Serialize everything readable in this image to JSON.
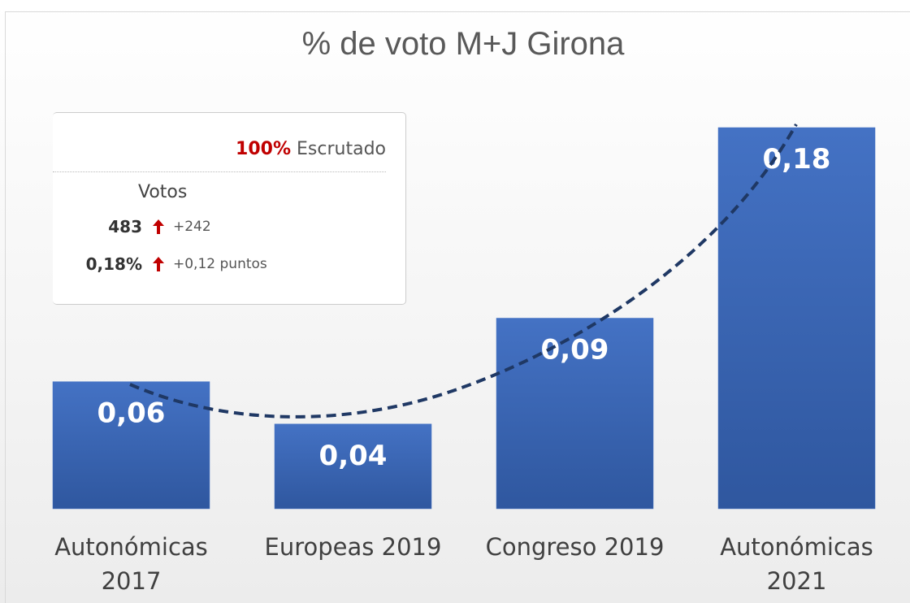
{
  "chart_data": {
    "type": "bar",
    "title": "% de voto M+J Girona",
    "categories": [
      "Autonómicas\n2017",
      "Europeas 2019",
      "Congreso 2019",
      "Autonómicas\n2021"
    ],
    "values": [
      0.06,
      0.04,
      0.09,
      0.18
    ],
    "value_labels": [
      "0,06",
      "0,04",
      "0,09",
      "0,18"
    ],
    "color": "#4472c4"
  },
  "inset": {
    "scrutinized": "100%",
    "scrutinized_label": "Escrutado",
    "header": "Votos",
    "rows": [
      {
        "value": "483",
        "change": "+242"
      },
      {
        "value": "0,18%",
        "change": "+0,12 puntos"
      }
    ]
  }
}
